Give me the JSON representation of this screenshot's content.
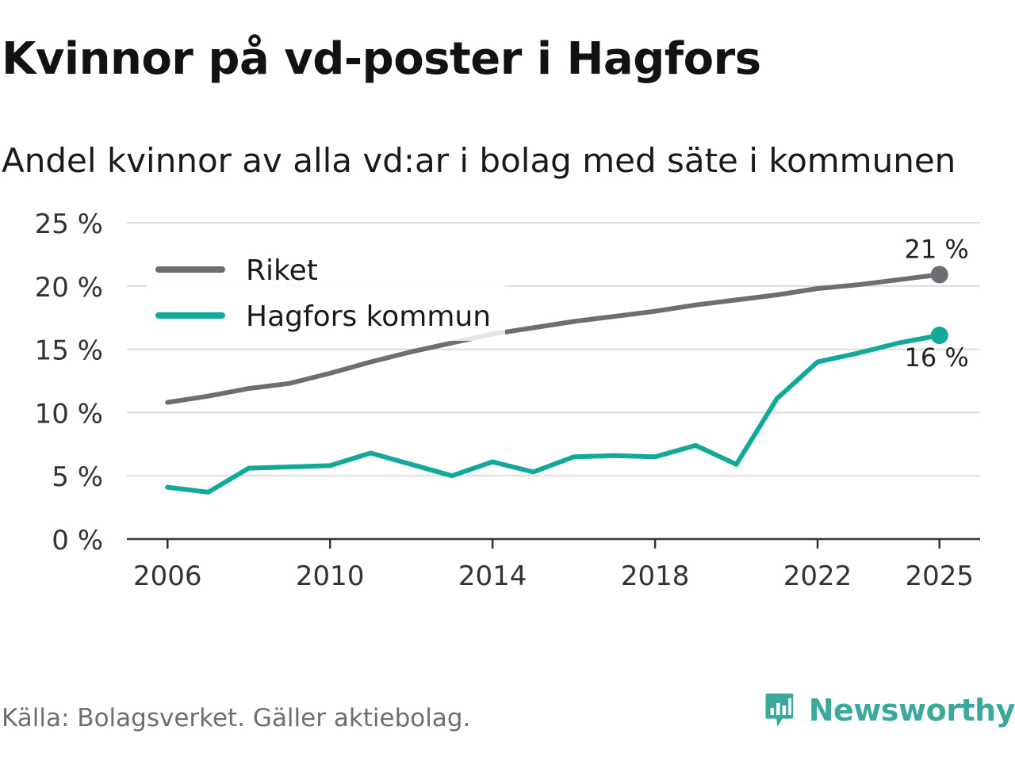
{
  "title": "Kvinnor på vd-poster i Hagfors",
  "subtitle": "Andel kvinnor av alla vd:ar i bolag med säte i kommunen",
  "source": "Källa: Bolagsverket. Gäller aktiebolag.",
  "brand": {
    "name": "Newsworthy",
    "icon": "newsworthy-logo-icon",
    "color": "#3aa99c"
  },
  "chart_data": {
    "type": "line",
    "title": "Kvinnor på vd-poster i Hagfors",
    "subtitle": "Andel kvinnor av alla vd:ar i bolag med säte i kommunen",
    "xlabel": "",
    "ylabel": "",
    "xlim": [
      2005.0,
      2026.0
    ],
    "ylim": [
      0,
      25
    ],
    "yticks": [
      0,
      5,
      10,
      15,
      20,
      25
    ],
    "ytick_labels": [
      "0 %",
      "5 %",
      "10 %",
      "15 %",
      "20 %",
      "25 %"
    ],
    "xticks": [
      2006,
      2010,
      2014,
      2018,
      2022,
      2025
    ],
    "xtick_labels": [
      "2006",
      "2010",
      "2014",
      "2018",
      "2022",
      "2025"
    ],
    "grid": true,
    "legend_position": "top-left",
    "x": [
      2006,
      2007,
      2008,
      2009,
      2010,
      2011,
      2012,
      2013,
      2014,
      2015,
      2016,
      2017,
      2018,
      2019,
      2020,
      2021,
      2022,
      2023,
      2024,
      2025
    ],
    "series": [
      {
        "name": "Riket",
        "color": "#6e6d74",
        "values": [
          10.8,
          11.3,
          11.9,
          12.3,
          13.1,
          14.0,
          14.8,
          15.5,
          16.2,
          16.7,
          17.2,
          17.6,
          18.0,
          18.5,
          18.9,
          19.3,
          19.8,
          20.1,
          20.5,
          20.9
        ],
        "end_label": "21 %"
      },
      {
        "name": "Hagfors kommun",
        "color": "#12a89a",
        "values": [
          4.1,
          3.7,
          5.6,
          5.7,
          5.8,
          6.8,
          5.9,
          5.0,
          6.1,
          5.3,
          6.5,
          6.6,
          6.5,
          7.4,
          5.9,
          11.1,
          14.0,
          14.7,
          15.5,
          16.1
        ],
        "end_label": "16 %"
      }
    ]
  }
}
